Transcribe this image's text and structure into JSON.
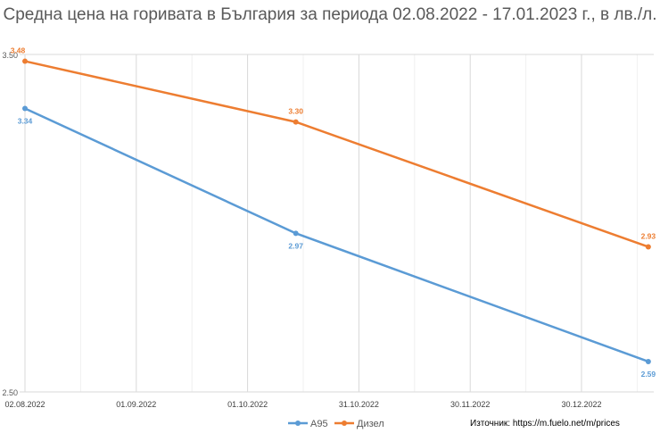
{
  "chart_data": {
    "type": "line",
    "title": "Средна цена на горивата в България за периода 02.08.2022 - 17.01.2023 г., в лв./л.",
    "x": [
      "2022-08-02",
      "2022-10-14",
      "2023-01-17"
    ],
    "series": [
      {
        "name": "A95",
        "values": [
          3.34,
          2.97,
          2.59
        ],
        "color": "#5B9BD5"
      },
      {
        "name": "Дизел",
        "values": [
          3.48,
          3.3,
          2.93
        ],
        "color": "#ED7D31"
      }
    ],
    "x_tick_labels": [
      "02.08.2022",
      "01.09.2022",
      "01.10.2022",
      "31.10.2022",
      "30.11.2022",
      "30.12.2022"
    ],
    "y_tick_labels": [
      "3.50",
      "2.50"
    ],
    "ylim": [
      2.5,
      3.5
    ],
    "xlim": [
      "2022-08-02",
      "2023-01-18"
    ],
    "grid": true,
    "legend": "bottom",
    "xlabel": "",
    "ylabel": ""
  },
  "source": "Източник: https://m.fuelo.net/m/prices"
}
